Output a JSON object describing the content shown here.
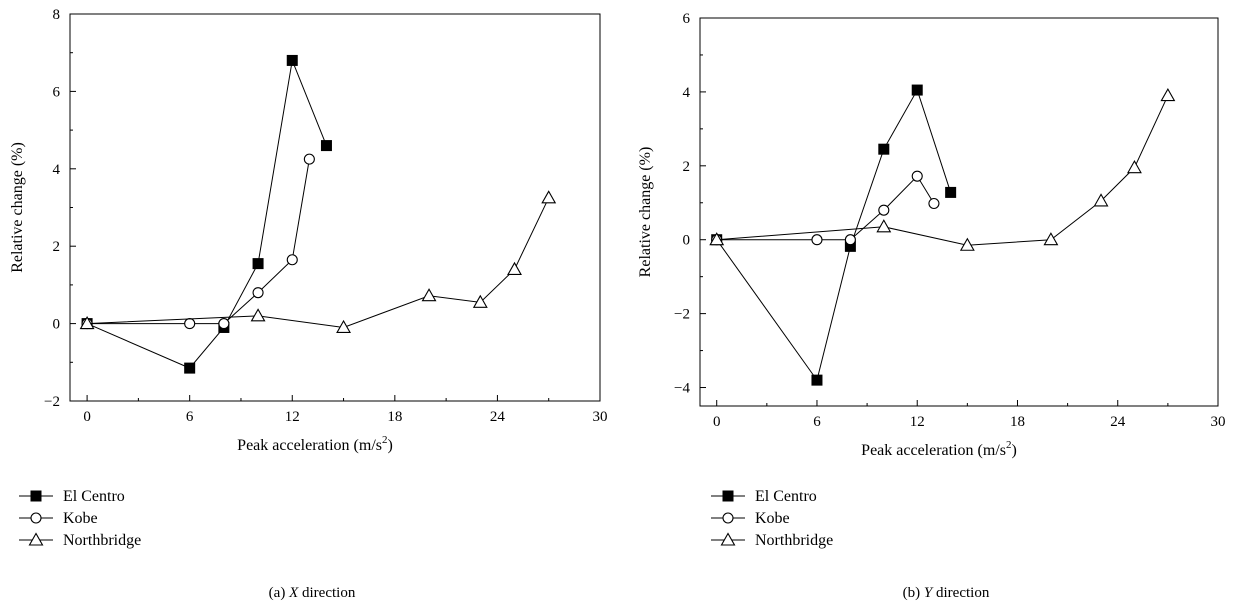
{
  "chart_data": [
    {
      "type": "line",
      "caption_prefix": "(a)",
      "caption_axis": "X",
      "caption_rest": " direction",
      "xlabel": "Peak acceleration (m/s",
      "xlabel_sup": "2",
      "xlabel_close": ")",
      "ylabel": "Relative change (%)",
      "xlim": [
        -1,
        30
      ],
      "ylim": [
        -2,
        8
      ],
      "xticks": [
        0,
        6,
        12,
        18,
        24,
        30
      ],
      "xtick_labels": [
        "0",
        "6",
        "12",
        "18",
        "24",
        "30"
      ],
      "yticks": [
        -2,
        0,
        2,
        4,
        6,
        8
      ],
      "ytick_labels": [
        "−2",
        "0",
        "2",
        "4",
        "6",
        "8"
      ],
      "legend_position": "below",
      "series": [
        {
          "name": "El Centro",
          "marker": "filled-square",
          "x": [
            0,
            6,
            8,
            10,
            12,
            14
          ],
          "y": [
            0,
            -1.15,
            -0.1,
            1.55,
            6.8,
            4.6
          ]
        },
        {
          "name": "Kobe",
          "marker": "open-circle",
          "x": [
            0,
            6,
            8,
            10,
            12,
            13
          ],
          "y": [
            0,
            0,
            0,
            0.8,
            1.65,
            4.25
          ]
        },
        {
          "name": "Northbridge",
          "marker": "open-triangle",
          "x": [
            0,
            10,
            15,
            20,
            23,
            25,
            27
          ],
          "y": [
            0,
            0.2,
            -0.1,
            0.72,
            0.55,
            1.4,
            3.25
          ]
        }
      ]
    },
    {
      "type": "line",
      "caption_prefix": "(b)",
      "caption_axis": "Y",
      "caption_rest": " direction",
      "xlabel": "Peak acceleration (m/s",
      "xlabel_sup": "2",
      "xlabel_close": ")",
      "ylabel": "Relative change (%)",
      "xlim": [
        -1,
        30
      ],
      "ylim": [
        -4.5,
        6
      ],
      "xticks": [
        0,
        6,
        12,
        18,
        24,
        30
      ],
      "xtick_labels": [
        "0",
        "6",
        "12",
        "18",
        "24",
        "30"
      ],
      "yticks": [
        -4,
        -2,
        0,
        2,
        4,
        6
      ],
      "ytick_labels": [
        "−4",
        "−2",
        "0",
        "2",
        "4",
        "6"
      ],
      "legend_position": "below",
      "series": [
        {
          "name": "El Centro",
          "marker": "filled-square",
          "x": [
            0,
            6,
            8,
            10,
            12,
            14
          ],
          "y": [
            0,
            -3.8,
            -0.18,
            2.45,
            4.05,
            1.28
          ]
        },
        {
          "name": "Kobe",
          "marker": "open-circle",
          "x": [
            0,
            6,
            8,
            10,
            12,
            13
          ],
          "y": [
            0,
            0,
            0,
            0.8,
            1.72,
            0.98
          ]
        },
        {
          "name": "Northbridge",
          "marker": "open-triangle",
          "x": [
            0,
            10,
            15,
            20,
            23,
            25,
            27
          ],
          "y": [
            0,
            0.35,
            -0.15,
            0,
            1.05,
            1.95,
            3.9
          ]
        }
      ]
    }
  ]
}
